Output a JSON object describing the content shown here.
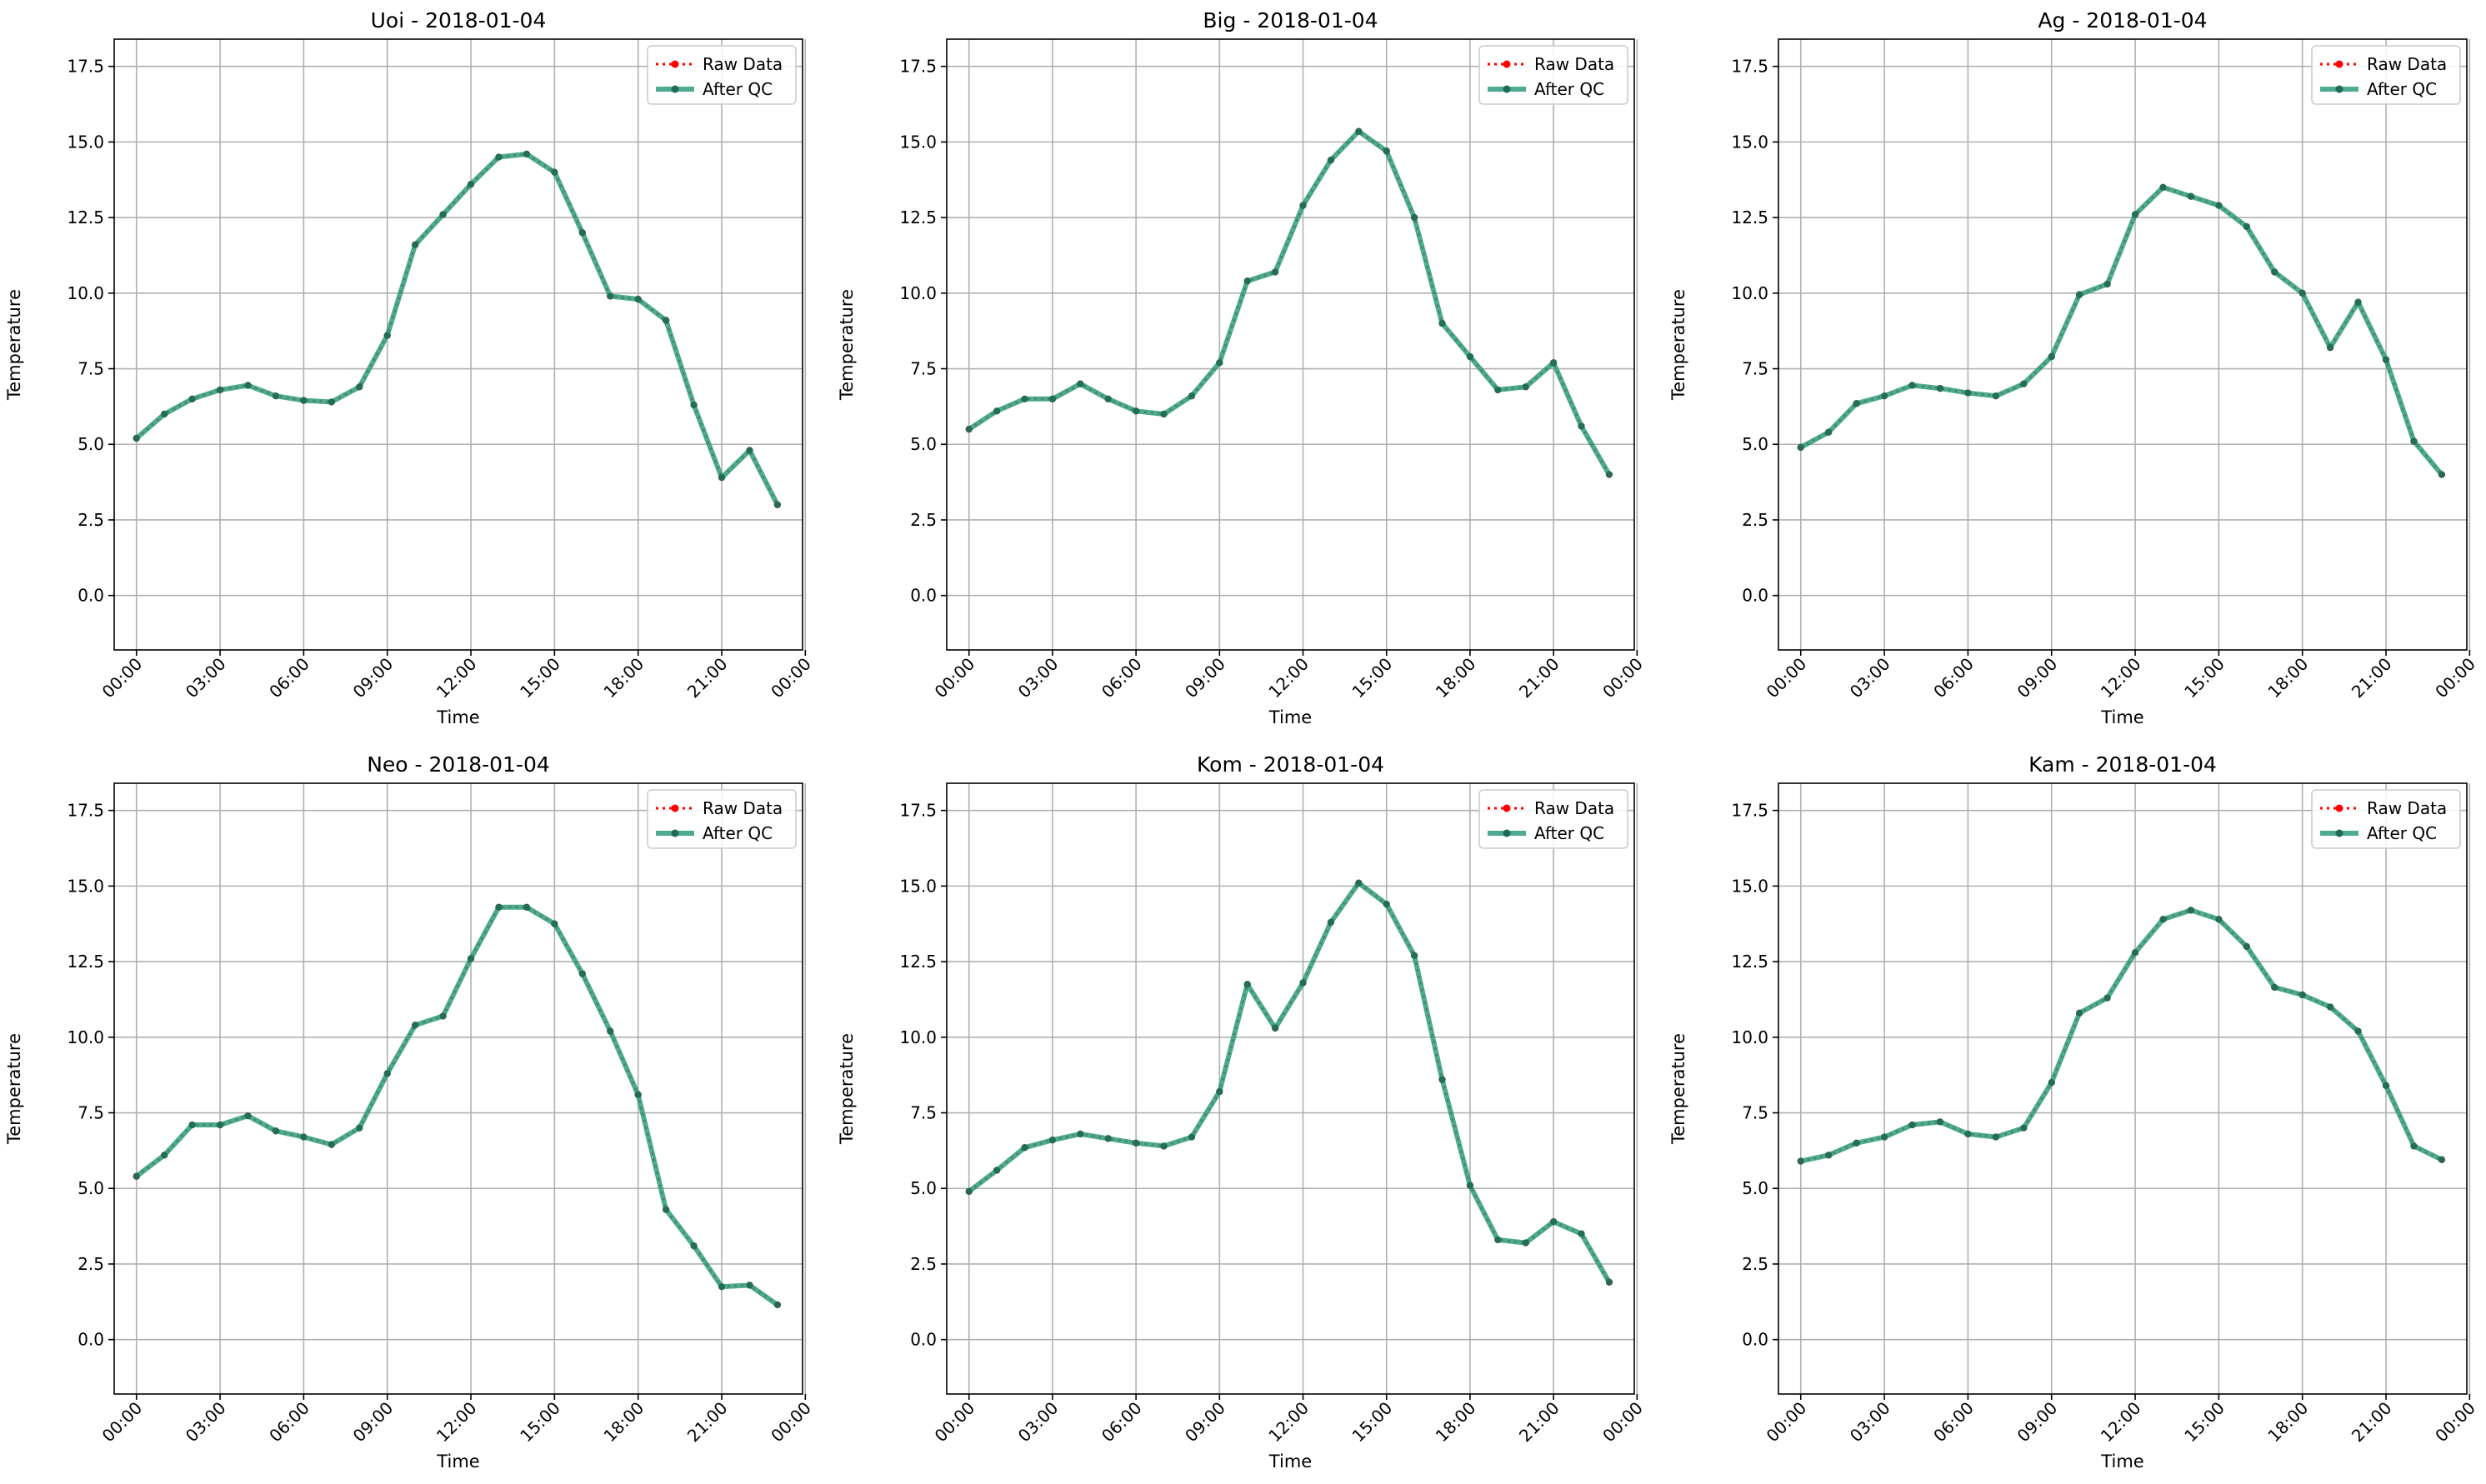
{
  "chart_data": [
    {
      "type": "line",
      "title": "Uoi - 2018-01-04",
      "xlabel": "Time",
      "ylabel": "Temperature",
      "ylim": [
        -1.8,
        18.4
      ],
      "yticks": [
        "0.0",
        "2.5",
        "5.0",
        "7.5",
        "10.0",
        "12.5",
        "15.0",
        "17.5"
      ],
      "xlim_hours": [
        -0.8,
        23.9
      ],
      "xticks": [
        "00:00",
        "03:00",
        "06:00",
        "09:00",
        "12:00",
        "15:00",
        "18:00",
        "21:00",
        "00:00"
      ],
      "grid": true,
      "legend": "top-right",
      "x_hours": [
        0,
        1,
        2,
        3,
        4,
        5,
        6,
        7,
        8,
        9,
        10,
        11,
        12,
        13,
        14,
        15,
        16,
        17,
        18,
        19,
        20,
        21,
        22,
        23
      ],
      "series": [
        {
          "name": "Raw Data",
          "values": [
            5.2,
            6.0,
            6.5,
            6.8,
            6.95,
            6.6,
            6.45,
            6.4,
            6.9,
            8.6,
            11.6,
            12.6,
            13.6,
            14.5,
            14.6,
            14.0,
            12.0,
            9.9,
            9.8,
            9.1,
            6.3,
            3.9,
            4.8,
            3.0
          ]
        },
        {
          "name": "After QC",
          "values": [
            5.2,
            6.0,
            6.5,
            6.8,
            6.95,
            6.6,
            6.45,
            6.4,
            6.9,
            8.6,
            11.6,
            12.6,
            13.6,
            14.5,
            14.6,
            14.0,
            12.0,
            9.9,
            9.8,
            9.1,
            6.3,
            3.9,
            4.8,
            3.0
          ]
        }
      ]
    },
    {
      "type": "line",
      "title": "Big - 2018-01-04",
      "xlabel": "Time",
      "ylabel": "Temperature",
      "ylim": [
        -1.8,
        18.4
      ],
      "yticks": [
        "0.0",
        "2.5",
        "5.0",
        "7.5",
        "10.0",
        "12.5",
        "15.0",
        "17.5"
      ],
      "xlim_hours": [
        -0.8,
        23.9
      ],
      "xticks": [
        "00:00",
        "03:00",
        "06:00",
        "09:00",
        "12:00",
        "15:00",
        "18:00",
        "21:00",
        "00:00"
      ],
      "grid": true,
      "legend": "top-right",
      "x_hours": [
        0,
        1,
        2,
        3,
        4,
        5,
        6,
        7,
        8,
        9,
        10,
        11,
        12,
        13,
        14,
        15,
        16,
        17,
        18,
        19,
        20,
        21,
        22,
        23
      ],
      "series": [
        {
          "name": "Raw Data",
          "values": [
            5.5,
            6.1,
            6.5,
            6.5,
            7.0,
            6.5,
            6.1,
            6.0,
            6.6,
            7.7,
            10.4,
            10.7,
            12.9,
            14.4,
            15.35,
            14.7,
            12.5,
            9.0,
            7.9,
            6.8,
            6.9,
            7.7,
            5.6,
            4.0
          ]
        },
        {
          "name": "After QC",
          "values": [
            5.5,
            6.1,
            6.5,
            6.5,
            7.0,
            6.5,
            6.1,
            6.0,
            6.6,
            7.7,
            10.4,
            10.7,
            12.9,
            14.4,
            15.35,
            14.7,
            12.5,
            9.0,
            7.9,
            6.8,
            6.9,
            7.7,
            5.6,
            4.0
          ]
        }
      ]
    },
    {
      "type": "line",
      "title": "Ag - 2018-01-04",
      "xlabel": "Time",
      "ylabel": "Temperature",
      "ylim": [
        -1.8,
        18.4
      ],
      "yticks": [
        "0.0",
        "2.5",
        "5.0",
        "7.5",
        "10.0",
        "12.5",
        "15.0",
        "17.5"
      ],
      "xlim_hours": [
        -0.8,
        23.9
      ],
      "xticks": [
        "00:00",
        "03:00",
        "06:00",
        "09:00",
        "12:00",
        "15:00",
        "18:00",
        "21:00",
        "00:00"
      ],
      "grid": true,
      "legend": "top-right",
      "x_hours": [
        0,
        1,
        2,
        3,
        4,
        5,
        6,
        7,
        8,
        9,
        10,
        11,
        12,
        13,
        14,
        15,
        16,
        17,
        18,
        19,
        20,
        21,
        22,
        23
      ],
      "series": [
        {
          "name": "Raw Data",
          "values": [
            4.9,
            5.4,
            6.35,
            6.6,
            6.95,
            6.85,
            6.7,
            6.6,
            7.0,
            7.9,
            9.95,
            10.3,
            12.6,
            13.5,
            13.2,
            12.9,
            12.2,
            10.7,
            10.0,
            8.2,
            9.7,
            7.8,
            5.1,
            4.0
          ]
        },
        {
          "name": "After QC",
          "values": [
            4.9,
            5.4,
            6.35,
            6.6,
            6.95,
            6.85,
            6.7,
            6.6,
            7.0,
            7.9,
            9.95,
            10.3,
            12.6,
            13.5,
            13.2,
            12.9,
            12.2,
            10.7,
            10.0,
            8.2,
            9.7,
            7.8,
            5.1,
            4.0
          ]
        }
      ]
    },
    {
      "type": "line",
      "title": "Neo - 2018-01-04",
      "xlabel": "Time",
      "ylabel": "Temperature",
      "ylim": [
        -1.8,
        18.4
      ],
      "yticks": [
        "0.0",
        "2.5",
        "5.0",
        "7.5",
        "10.0",
        "12.5",
        "15.0",
        "17.5"
      ],
      "xlim_hours": [
        -0.8,
        23.9
      ],
      "xticks": [
        "00:00",
        "03:00",
        "06:00",
        "09:00",
        "12:00",
        "15:00",
        "18:00",
        "21:00",
        "00:00"
      ],
      "grid": true,
      "legend": "top-right",
      "x_hours": [
        0,
        1,
        2,
        3,
        4,
        5,
        6,
        7,
        8,
        9,
        10,
        11,
        12,
        13,
        14,
        15,
        16,
        17,
        18,
        19,
        20,
        21,
        22,
        23
      ],
      "series": [
        {
          "name": "Raw Data",
          "values": [
            5.4,
            6.1,
            7.1,
            7.1,
            7.4,
            6.9,
            6.7,
            6.45,
            7.0,
            8.8,
            10.4,
            10.7,
            12.6,
            14.3,
            14.3,
            13.75,
            12.1,
            10.2,
            8.1,
            4.3,
            3.1,
            1.75,
            1.8,
            1.15
          ]
        },
        {
          "name": "After QC",
          "values": [
            5.4,
            6.1,
            7.1,
            7.1,
            7.4,
            6.9,
            6.7,
            6.45,
            7.0,
            8.8,
            10.4,
            10.7,
            12.6,
            14.3,
            14.3,
            13.75,
            12.1,
            10.2,
            8.1,
            4.3,
            3.1,
            1.75,
            1.8,
            1.15
          ]
        }
      ]
    },
    {
      "type": "line",
      "title": "Kom - 2018-01-04",
      "xlabel": "Time",
      "ylabel": "Temperature",
      "ylim": [
        -1.8,
        18.4
      ],
      "yticks": [
        "0.0",
        "2.5",
        "5.0",
        "7.5",
        "10.0",
        "12.5",
        "15.0",
        "17.5"
      ],
      "xlim_hours": [
        -0.8,
        23.9
      ],
      "xticks": [
        "00:00",
        "03:00",
        "06:00",
        "09:00",
        "12:00",
        "15:00",
        "18:00",
        "21:00",
        "00:00"
      ],
      "grid": true,
      "legend": "top-right",
      "x_hours": [
        0,
        1,
        2,
        3,
        4,
        5,
        6,
        7,
        8,
        9,
        10,
        11,
        12,
        13,
        14,
        15,
        16,
        17,
        18,
        19,
        20,
        21,
        22,
        23
      ],
      "series": [
        {
          "name": "Raw Data",
          "values": [
            4.9,
            5.6,
            6.35,
            6.6,
            6.8,
            6.65,
            6.5,
            6.4,
            6.7,
            8.2,
            11.75,
            10.3,
            11.8,
            13.8,
            15.1,
            14.4,
            12.7,
            8.6,
            5.1,
            3.3,
            3.2,
            3.9,
            3.5,
            1.9
          ]
        },
        {
          "name": "After QC",
          "values": [
            4.9,
            5.6,
            6.35,
            6.6,
            6.8,
            6.65,
            6.5,
            6.4,
            6.7,
            8.2,
            11.75,
            10.3,
            11.8,
            13.8,
            15.1,
            14.4,
            12.7,
            8.6,
            5.1,
            3.3,
            3.2,
            3.9,
            3.5,
            1.9
          ]
        }
      ]
    },
    {
      "type": "line",
      "title": "Kam - 2018-01-04",
      "xlabel": "Time",
      "ylabel": "Temperature",
      "ylim": [
        -1.8,
        18.4
      ],
      "yticks": [
        "0.0",
        "2.5",
        "5.0",
        "7.5",
        "10.0",
        "12.5",
        "15.0",
        "17.5"
      ],
      "xlim_hours": [
        -0.8,
        23.9
      ],
      "xticks": [
        "00:00",
        "03:00",
        "06:00",
        "09:00",
        "12:00",
        "15:00",
        "18:00",
        "21:00",
        "00:00"
      ],
      "grid": true,
      "legend": "top-right",
      "x_hours": [
        0,
        1,
        2,
        3,
        4,
        5,
        6,
        7,
        8,
        9,
        10,
        11,
        12,
        13,
        14,
        15,
        16,
        17,
        18,
        19,
        20,
        21,
        22,
        23
      ],
      "series": [
        {
          "name": "Raw Data",
          "values": [
            5.9,
            6.1,
            6.5,
            6.7,
            7.1,
            7.2,
            6.8,
            6.7,
            7.0,
            8.5,
            10.8,
            11.3,
            12.8,
            13.9,
            14.2,
            13.9,
            13.0,
            11.65,
            11.4,
            11.0,
            10.2,
            8.4,
            6.4,
            5.95
          ]
        },
        {
          "name": "After QC",
          "values": [
            5.9,
            6.1,
            6.5,
            6.7,
            7.1,
            7.2,
            6.8,
            6.7,
            7.0,
            8.5,
            10.8,
            11.3,
            12.8,
            13.9,
            14.2,
            13.9,
            13.0,
            11.65,
            11.4,
            11.0,
            10.2,
            8.4,
            6.4,
            5.95
          ]
        }
      ]
    }
  ],
  "colors": {
    "raw": "#ff0000",
    "qc_line": "#2e9e7c",
    "qc_marker": "#1f6b55",
    "grid": "#b0b0b0",
    "axis": "#000000"
  }
}
